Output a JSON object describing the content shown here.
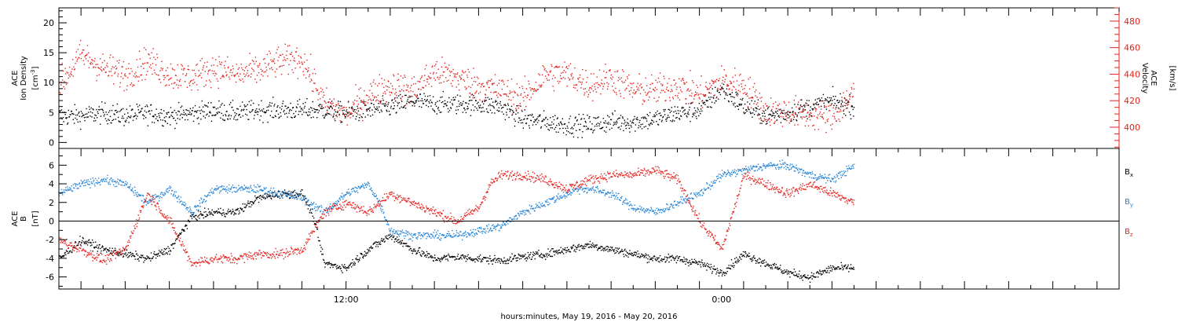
{
  "chart_data": [
    {
      "type": "scatter",
      "ylabel_lines": [
        "ACE",
        "Ion Density"
      ],
      "ylabel_unit_base": "[cm",
      "ylabel_unit_exp": "-3",
      "ylabel_unit_tail": "]",
      "y2label_lines": [
        "ACE",
        "Velocity"
      ],
      "y2label_unit": "[km/s]",
      "ylim": [
        -1,
        22.5
      ],
      "yticks": [
        0,
        5,
        10,
        15,
        20
      ],
      "y2lim": [
        384,
        490
      ],
      "y2ticks": [
        400,
        420,
        440,
        460,
        480
      ],
      "series": [
        {
          "axis": "left",
          "color": "#000000",
          "x": [
            0,
            1,
            2,
            3,
            4,
            5,
            6,
            7,
            8,
            9,
            10,
            11,
            12,
            13,
            14,
            15,
            16,
            17,
            18,
            19,
            20,
            20.5,
            21,
            22,
            23,
            24,
            25,
            25.5,
            26,
            27,
            28,
            29,
            30,
            31,
            32,
            33,
            34,
            35,
            36
          ],
          "y": [
            4.5,
            4.5,
            5,
            4.5,
            5,
            4.5,
            5,
            5.5,
            5,
            5.5,
            5.5,
            5.5,
            5.5,
            5,
            5.5,
            6,
            7,
            6.5,
            6.5,
            6.5,
            6,
            5,
            4,
            3.5,
            3,
            3,
            3.5,
            3.5,
            3.5,
            4,
            5,
            5.5,
            9,
            6,
            4.5,
            5,
            6,
            7,
            6
          ],
          "spread": 1.6
        },
        {
          "axis": "right",
          "color": "#e4231e",
          "x": [
            0,
            1,
            2,
            3,
            4,
            5,
            6,
            7,
            8,
            9,
            10,
            11,
            12,
            13,
            14,
            15,
            16,
            17,
            18,
            19,
            20,
            21,
            22,
            23,
            24,
            25,
            26,
            27,
            28,
            29,
            30,
            31,
            32,
            33,
            34,
            35,
            36
          ],
          "y": [
            432,
            455,
            445,
            440,
            450,
            440,
            438,
            445,
            440,
            443,
            450,
            452,
            418,
            410,
            425,
            432,
            428,
            442,
            438,
            432,
            428,
            422,
            440,
            440,
            432,
            438,
            428,
            428,
            432,
            425,
            435,
            432,
            412,
            412,
            410,
            408,
            428
          ],
          "spread": 11
        }
      ]
    },
    {
      "type": "scatter",
      "ylabel_lines": [
        "ACE",
        "B"
      ],
      "ylabel_unit": "[nT]",
      "ylim": [
        -7.3,
        7.8
      ],
      "yticks": [
        -6,
        -4,
        -2,
        0,
        2,
        4,
        6
      ],
      "zero_line": true,
      "legend_position": "right",
      "xlabel": "hours:minutes, May 19, 2016 - May 20, 2016",
      "xlim": [
        0,
        48
      ],
      "x_ticklabels": [
        {
          "x": 13.0,
          "label": "12:00"
        },
        {
          "x": 30.0,
          "label": "0:00"
        }
      ],
      "series": [
        {
          "name": "B",
          "name_sub": "x",
          "color": "#000000",
          "x": [
            0,
            1,
            2,
            3,
            4,
            5,
            6,
            7,
            8,
            9,
            10,
            11,
            11.5,
            12,
            13,
            14,
            15,
            16,
            17,
            18,
            19,
            20,
            21,
            22,
            23,
            24,
            25,
            26,
            27,
            28,
            29,
            30,
            31,
            32,
            33,
            34,
            35,
            36
          ],
          "y": [
            -4,
            -2,
            -3,
            -3.5,
            -4,
            -3,
            0.5,
            1,
            1,
            2.5,
            3,
            3,
            0.5,
            -4.5,
            -5,
            -3,
            -1.5,
            -3,
            -4,
            -3.8,
            -4,
            -4.2,
            -3.8,
            -3.5,
            -3,
            -2.5,
            -3,
            -3.5,
            -4,
            -4,
            -4.5,
            -5.5,
            -3.5,
            -4.5,
            -5.5,
            -6,
            -5,
            -5
          ],
          "spread": 0.7
        },
        {
          "name": "B",
          "name_sub": "y",
          "color": "#2384d7",
          "x": [
            0,
            1,
            2,
            3,
            4,
            5,
            6,
            7,
            8,
            9,
            10,
            11,
            12,
            13,
            14,
            14.5,
            15,
            16,
            17,
            18,
            19,
            20,
            21,
            22,
            23,
            23.5,
            24,
            25,
            26,
            27,
            28,
            29,
            30,
            31,
            32,
            33,
            34,
            35,
            36
          ],
          "y": [
            3,
            4,
            4.5,
            4,
            2,
            3.5,
            1,
            3.5,
            3.5,
            3.5,
            3,
            2.5,
            1,
            3,
            4,
            2,
            -1,
            -1.5,
            -1.5,
            -1.5,
            -1,
            -0.5,
            1,
            2,
            3,
            3.5,
            3.5,
            3,
            1.5,
            1,
            2,
            3,
            5,
            5.5,
            6,
            6,
            5,
            4.5,
            6
          ],
          "spread": 0.7
        },
        {
          "name": "B",
          "name_sub": "z",
          "color": "#e4231e",
          "x": [
            0,
            1,
            2,
            3,
            4,
            5,
            6,
            7,
            8,
            9,
            10,
            11,
            12,
            13,
            14,
            15,
            16,
            17,
            18,
            19,
            19.5,
            20,
            21,
            22,
            23,
            24,
            25,
            26,
            27,
            28,
            29,
            30,
            31,
            32,
            33,
            34,
            35,
            36
          ],
          "y": [
            -2,
            -3,
            -4.2,
            -3,
            3,
            0,
            -4.5,
            -4,
            -4,
            -3.5,
            -3.5,
            -3,
            1,
            2,
            1,
            3,
            2,
            1,
            0,
            1.5,
            4,
            5,
            5,
            4.5,
            3.5,
            4.5,
            5,
            5,
            5.5,
            4.5,
            0,
            -3,
            5,
            4,
            3,
            4,
            3,
            2
          ],
          "spread": 0.8
        }
      ]
    }
  ]
}
